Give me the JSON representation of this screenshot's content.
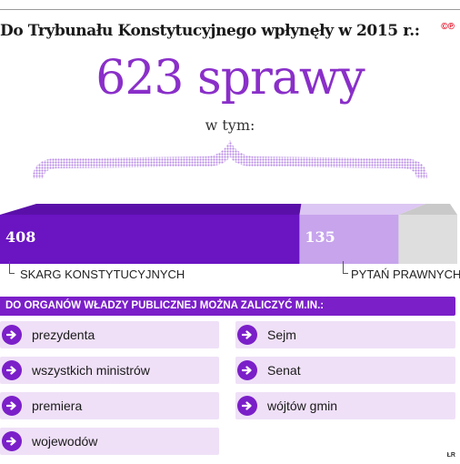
{
  "header": {
    "headline": "Do Trybunału Konstytucyjnego wpłynęły w 2015 r.:",
    "logo": "©℗"
  },
  "total": {
    "value": "623 sprawy",
    "subtitle": "w tym:"
  },
  "chart_data": {
    "type": "bar",
    "categories": [
      "SKARG KONSTYTUCYJNYCH",
      "PYTAŃ PRAWNYCH"
    ],
    "values": [
      408,
      135
    ],
    "value_labels": [
      "408",
      "135"
    ],
    "total": 623,
    "colors": {
      "skargi": "#6a14c2",
      "pytania": "#c7a4ec",
      "remainder": "#dedede"
    }
  },
  "section": {
    "title": "DO ORGANÓW WŁADZY PUBLICZNEJ MOŻNA ZALICZYĆ M.IN.:",
    "items_left": [
      "prezydenta",
      "wszystkich ministrów",
      "premiera",
      "wojewodów"
    ],
    "items_right": [
      "Sejm",
      "Senat",
      "wójtów gmin"
    ]
  },
  "footer": {
    "credit": "ŁR"
  },
  "colors": {
    "accent": "#8a2fc9",
    "header_bar": "#7b1fc9",
    "item_bg": "#efe0f7"
  }
}
